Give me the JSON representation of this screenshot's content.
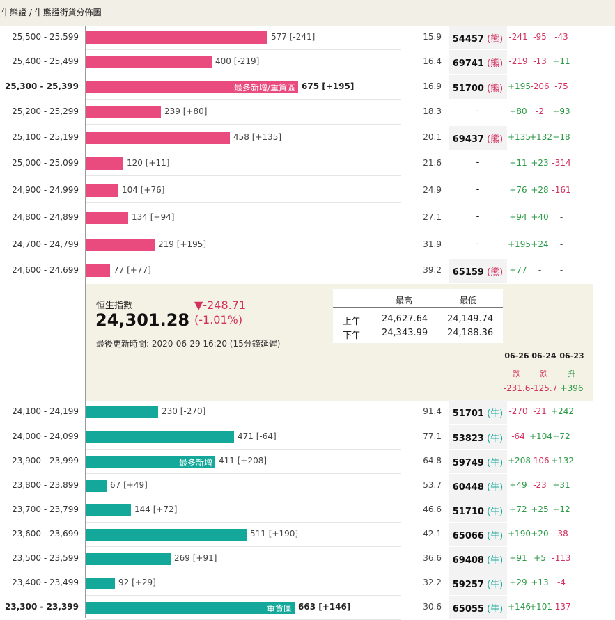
{
  "breadcrumb": "牛熊證 / 牛熊證街貨分佈圖",
  "bear_rows": [
    {
      "range": "25,500 - 25,599",
      "qty": 577,
      "label": "577 [-241]",
      "tag": "",
      "pct": "15.9",
      "code": "54457",
      "type": "熊",
      "c1": "-241",
      "c2": "-95",
      "c3": "-43",
      "bold": false
    },
    {
      "range": "25,400 - 25,499",
      "qty": 400,
      "label": "400 [-219]",
      "tag": "",
      "pct": "16.4",
      "code": "69741",
      "type": "熊",
      "c1": "-219",
      "c2": "-13",
      "c3": "+11",
      "bold": false
    },
    {
      "range": "25,300 - 25,399",
      "qty": 675,
      "label": "675 [+195]",
      "tag": "最多新增/重貨區",
      "pct": "16.9",
      "code": "51700",
      "type": "熊",
      "c1": "+195",
      "c2": "-206",
      "c3": "-75",
      "bold": true
    },
    {
      "range": "25,200 - 25,299",
      "qty": 239,
      "label": "239 [+80]",
      "tag": "",
      "pct": "18.3",
      "code": "-",
      "type": "",
      "c1": "+80",
      "c2": "-2",
      "c3": "+93",
      "bold": false
    },
    {
      "range": "25,100 - 25,199",
      "qty": 458,
      "label": "458 [+135]",
      "tag": "",
      "pct": "20.1",
      "code": "69437",
      "type": "熊",
      "c1": "+135",
      "c2": "+132",
      "c3": "+18",
      "bold": false
    },
    {
      "range": "25,000 - 25,099",
      "qty": 120,
      "label": "120 [+11]",
      "tag": "",
      "pct": "21.6",
      "code": "-",
      "type": "",
      "c1": "+11",
      "c2": "+23",
      "c3": "-314",
      "bold": false
    },
    {
      "range": "24,900 - 24,999",
      "qty": 104,
      "label": "104 [+76]",
      "tag": "",
      "pct": "24.9",
      "code": "-",
      "type": "",
      "c1": "+76",
      "c2": "+28",
      "c3": "-161",
      "bold": false
    },
    {
      "range": "24,800 - 24,899",
      "qty": 134,
      "label": "134 [+94]",
      "tag": "",
      "pct": "27.1",
      "code": "-",
      "type": "",
      "c1": "+94",
      "c2": "+40",
      "c3": "-",
      "bold": false
    },
    {
      "range": "24,700 - 24,799",
      "qty": 219,
      "label": "219 [+195]",
      "tag": "",
      "pct": "31.9",
      "code": "-",
      "type": "",
      "c1": "+195",
      "c2": "+24",
      "c3": "-",
      "bold": false
    },
    {
      "range": "24,600 - 24,699",
      "qty": 77,
      "label": "77 [+77]",
      "tag": "",
      "pct": "39.2",
      "code": "65159",
      "type": "熊",
      "c1": "+77",
      "c2": "-",
      "c3": "-",
      "bold": false
    }
  ],
  "bull_rows": [
    {
      "range": "24,100 - 24,199",
      "qty": 230,
      "label": "230 [-270]",
      "tag": "",
      "pct": "91.4",
      "code": "51701",
      "type": "牛",
      "c1": "-270",
      "c2": "-21",
      "c3": "+242",
      "bold": false
    },
    {
      "range": "24,000 - 24,099",
      "qty": 471,
      "label": "471 [-64]",
      "tag": "",
      "pct": "77.1",
      "code": "53823",
      "type": "牛",
      "c1": "-64",
      "c2": "+104",
      "c3": "+72",
      "bold": false
    },
    {
      "range": "23,900 - 23,999",
      "qty": 411,
      "label": "411 [+208]",
      "tag": "最多新增",
      "pct": "64.8",
      "code": "59749",
      "type": "牛",
      "c1": "+208",
      "c2": "-106",
      "c3": "+132",
      "bold": false
    },
    {
      "range": "23,800 - 23,899",
      "qty": 67,
      "label": "67 [+49]",
      "tag": "",
      "pct": "53.7",
      "code": "60448",
      "type": "牛",
      "c1": "+49",
      "c2": "-23",
      "c3": "+31",
      "bold": false
    },
    {
      "range": "23,700 - 23,799",
      "qty": 144,
      "label": "144 [+72]",
      "tag": "",
      "pct": "46.6",
      "code": "51710",
      "type": "牛",
      "c1": "+72",
      "c2": "+25",
      "c3": "+12",
      "bold": false
    },
    {
      "range": "23,600 - 23,699",
      "qty": 511,
      "label": "511 [+190]",
      "tag": "",
      "pct": "42.1",
      "code": "65066",
      "type": "牛",
      "c1": "+190",
      "c2": "+20",
      "c3": "-38",
      "bold": false
    },
    {
      "range": "23,500 - 23,599",
      "qty": 269,
      "label": "269 [+91]",
      "tag": "",
      "pct": "36.6",
      "code": "69408",
      "type": "牛",
      "c1": "+91",
      "c2": "+5",
      "c3": "-113",
      "bold": false
    },
    {
      "range": "23,400 - 23,499",
      "qty": 92,
      "label": "92 [+29]",
      "tag": "",
      "pct": "32.2",
      "code": "59257",
      "type": "牛",
      "c1": "+29",
      "c2": "+13",
      "c3": "-4",
      "bold": false
    },
    {
      "range": "23,300 - 23,399",
      "qty": 663,
      "label": "663 [+146]",
      "tag": "重貨區",
      "pct": "30.6",
      "code": "65055",
      "type": "牛",
      "c1": "+146",
      "c2": "+101",
      "c3": "-137",
      "bold": true
    }
  ],
  "index": {
    "name": "恒生指數",
    "value": "24,301.28",
    "change": "▼-248.71",
    "change_pct": "(-1.01%)",
    "updated": "最後更新時間: 2020-06-29 16:20 (15分鐘延遲)"
  },
  "high_low": {
    "col_high": "最高",
    "col_low": "最低",
    "rows": [
      {
        "session": "上午",
        "high": "24,627.64",
        "low": "24,149.74"
      },
      {
        "session": "下午",
        "high": "24,343.99",
        "low": "24,188.36"
      }
    ]
  },
  "history": [
    {
      "date": "06-26",
      "dir": "跌",
      "value": "-231.6"
    },
    {
      "date": "06-24",
      "dir": "跌",
      "value": "-125.7"
    },
    {
      "date": "06-23",
      "dir": "升",
      "value": "+396"
    }
  ],
  "colors": {
    "bear": "#e94b7f",
    "bull": "#14a89a",
    "up": "#2c9a47",
    "down": "#d2315f",
    "panel": "#f4f1e5"
  }
}
